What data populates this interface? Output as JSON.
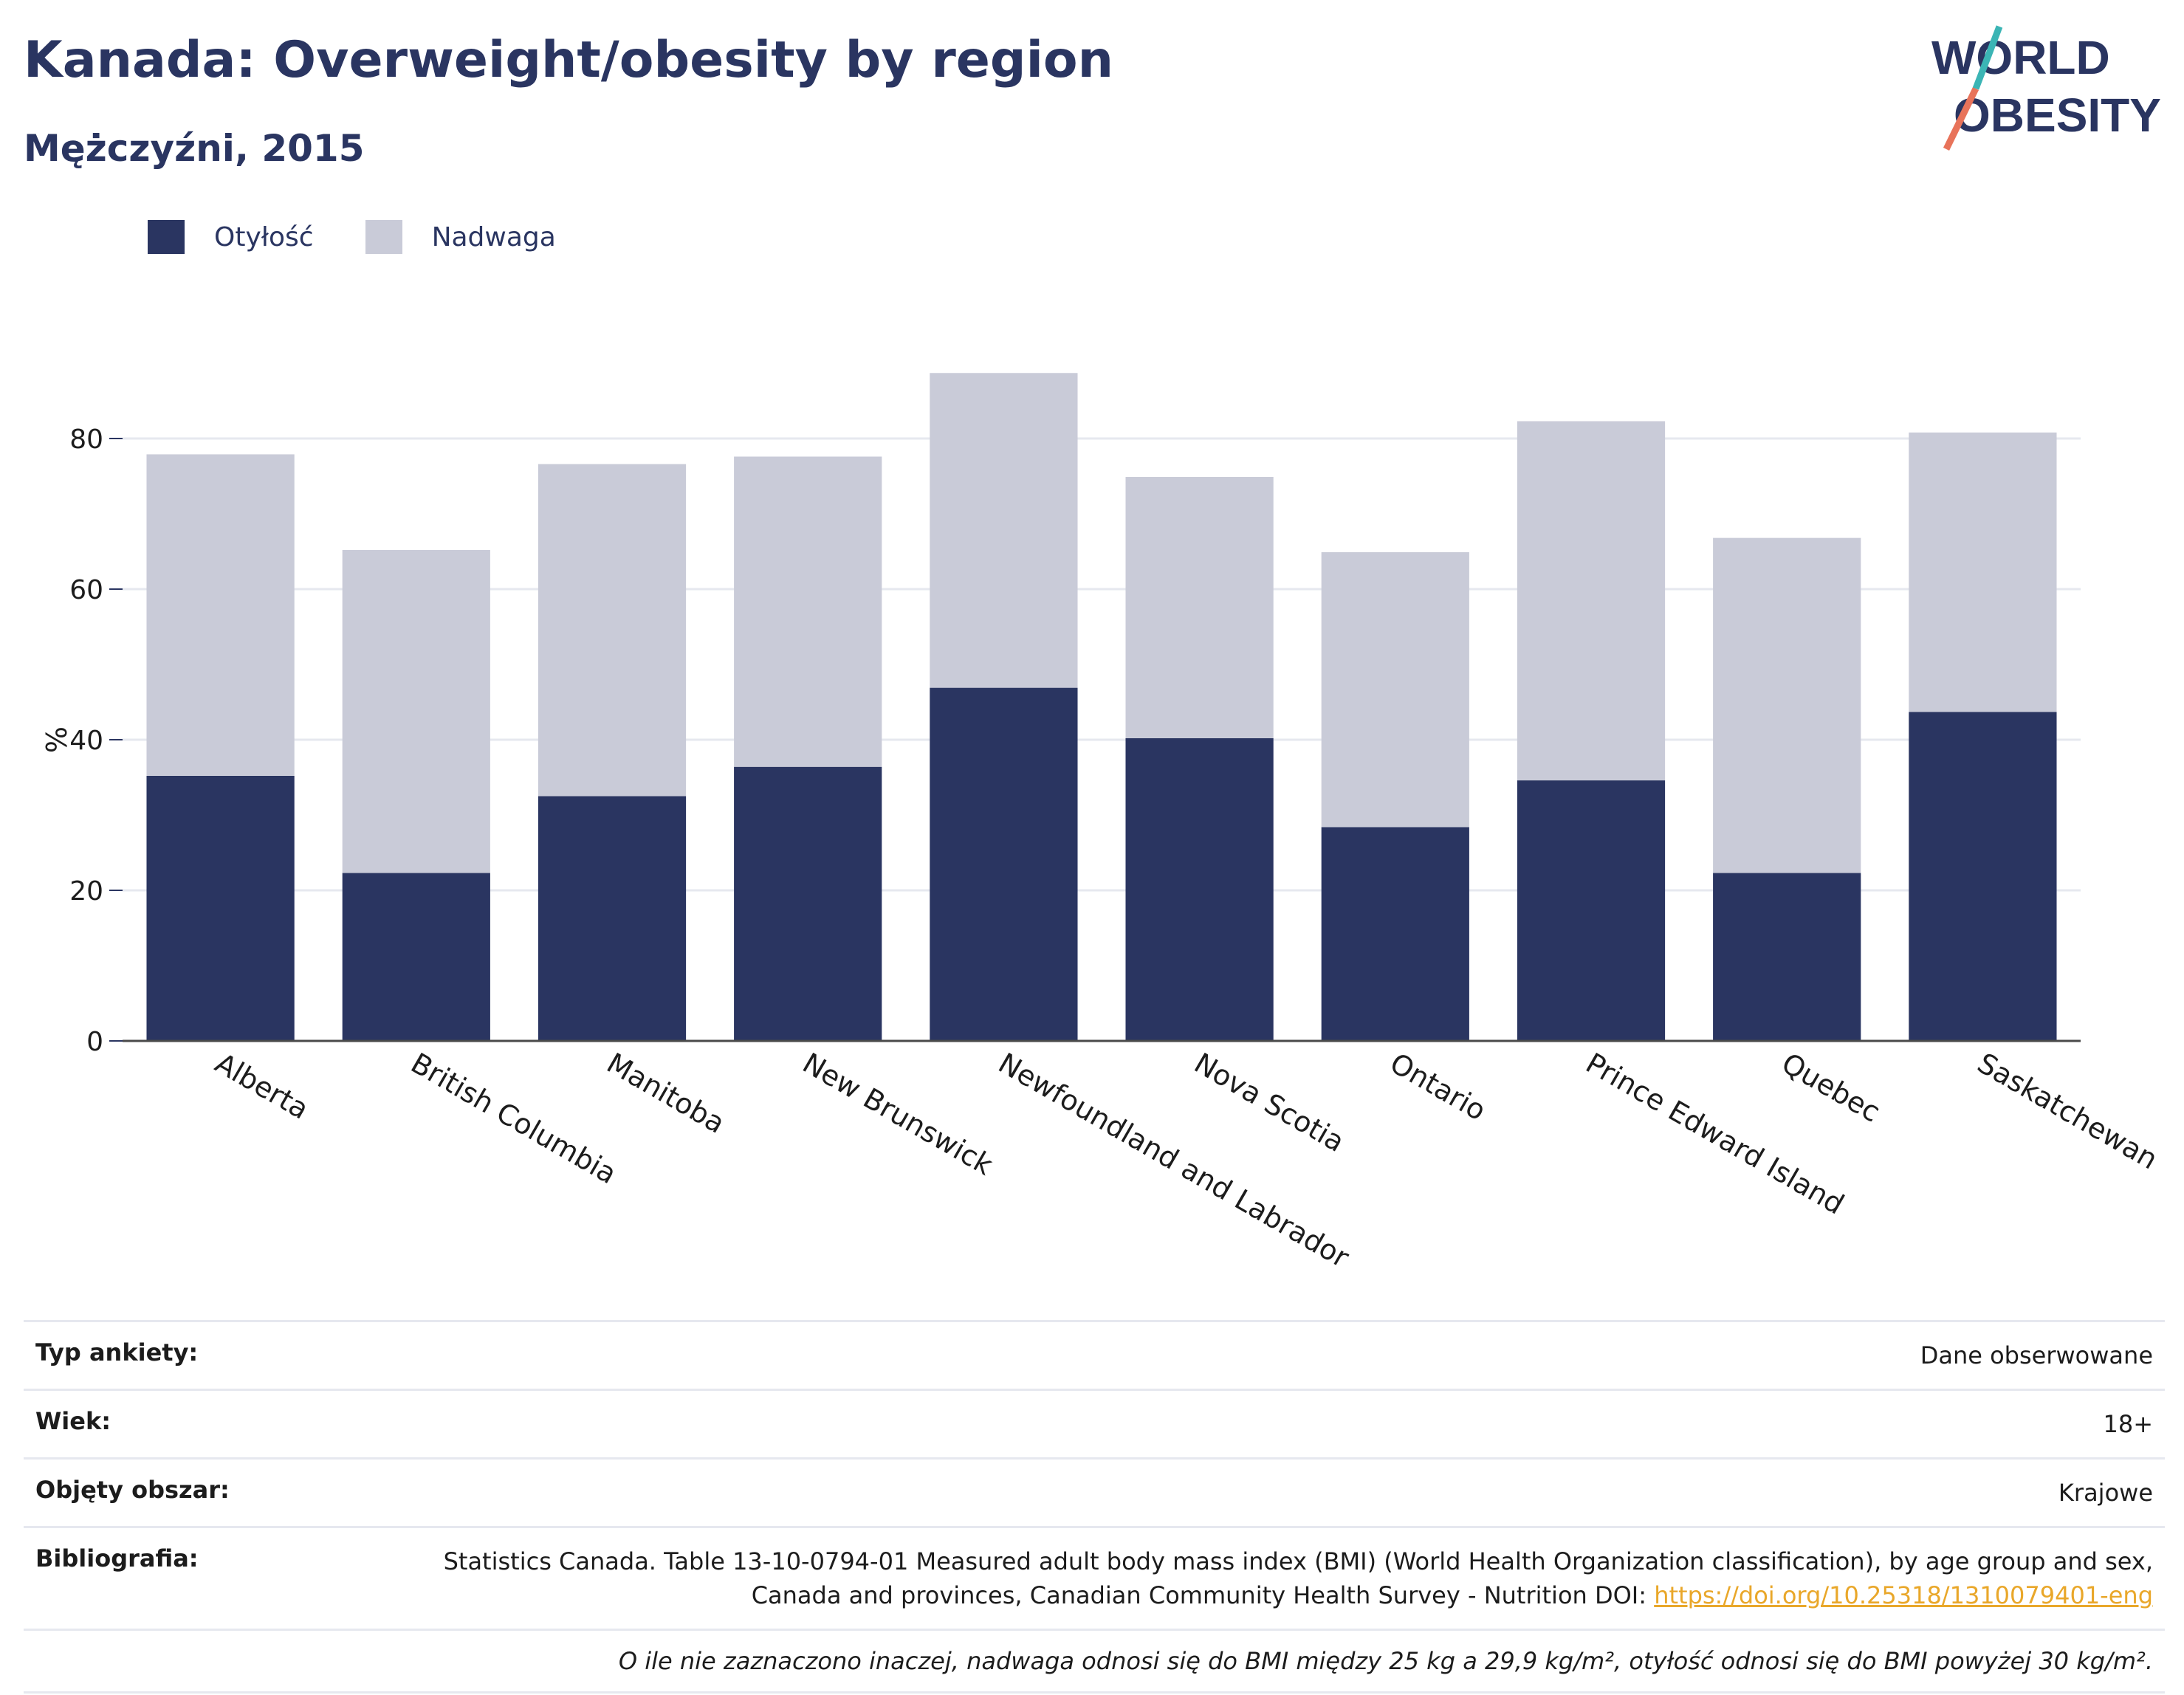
{
  "header": {
    "title": "Kanada: Overweight/obesity by region",
    "subtitle": "Mężczyźni, 2015"
  },
  "logo": {
    "line1": "WORLD",
    "line2": "OBESITY"
  },
  "colors": {
    "obesity": "#2a3561",
    "overweight": "#c9cbd8",
    "text": "#2a3561",
    "link": "#e9a72a"
  },
  "chart_data": {
    "type": "bar",
    "stacked": true,
    "categories": [
      "Alberta",
      "British Columbia",
      "Manitoba",
      "New Brunswick",
      "Newfoundland and Labrador",
      "Nova Scotia",
      "Ontario",
      "Prince Edward Island",
      "Quebec",
      "Saskatchewan"
    ],
    "series": [
      {
        "name": "Otyłość",
        "values": [
          35.2,
          22.3,
          32.5,
          36.4,
          46.9,
          40.2,
          28.4,
          34.6,
          22.3,
          43.7
        ]
      },
      {
        "name": "Nadwaga",
        "values": [
          42.7,
          42.9,
          44.1,
          41.2,
          41.8,
          34.7,
          36.5,
          47.7,
          44.5,
          37.1
        ]
      }
    ],
    "ylabel": "%",
    "xlabel": "",
    "ylim": [
      0,
      100
    ],
    "yticks": [
      0,
      20,
      40,
      60,
      80
    ],
    "grid": true,
    "legend_position": "top-left"
  },
  "info": {
    "rows": [
      {
        "label": "Typ ankiety:",
        "value": "Dane obserwowane"
      },
      {
        "label": "Wiek:",
        "value": "18+"
      },
      {
        "label": "Objęty obszar:",
        "value": "Krajowe"
      },
      {
        "label": "Bibliografia:",
        "value": "Statistics Canada. Table 13-10-0794-01 Measured adult body mass index (BMI) (World Health Organization classification), by age group and sex, Canada and provinces, Canadian Community Health Survey - Nutrition DOI: ",
        "link": "https://doi.org/10.25318/1310079401-eng"
      }
    ],
    "note": "O ile nie zaznaczono inaczej, nadwaga odnosi się do BMI między 25 kg a 29,9 kg/m², otyłość odnosi się do BMI powyżej 30 kg/m²."
  }
}
